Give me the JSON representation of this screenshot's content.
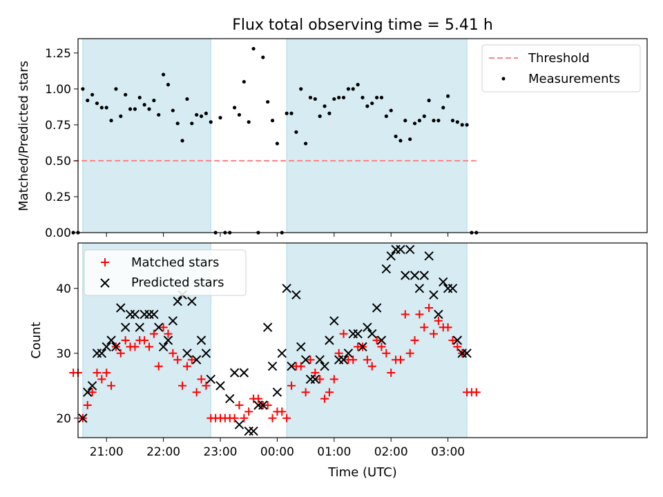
{
  "chart_data": [
    {
      "type": "scatter",
      "title": "Flux total observing time = 5.41 h",
      "xlabel": "",
      "ylabel": "Matched/Predicted stars",
      "ylim": [
        0,
        1.35
      ],
      "yticks": [
        0.0,
        0.25,
        0.5,
        0.75,
        1.0,
        1.25
      ],
      "ytick_labels": [
        "0.00",
        "0.25",
        "0.50",
        "0.75",
        "1.00",
        "1.25"
      ],
      "shaded_windows": [
        [
          "20:35",
          "22:50"
        ],
        [
          "00:10",
          "03:20"
        ]
      ],
      "threshold": {
        "name": "Threshold",
        "y": 0.5,
        "x": [
          "20:25",
          "03:30"
        ],
        "color": "#ff7f7f"
      },
      "series": [
        {
          "name": "Measurements",
          "color": "#000000",
          "x": [
            "20:25",
            "20:30",
            "20:35",
            "20:40",
            "20:45",
            "20:50",
            "20:55",
            "21:00",
            "21:05",
            "21:10",
            "21:15",
            "21:20",
            "21:25",
            "21:30",
            "21:35",
            "21:40",
            "21:45",
            "21:50",
            "21:55",
            "22:00",
            "22:05",
            "22:10",
            "22:15",
            "22:20",
            "22:25",
            "22:30",
            "22:35",
            "22:40",
            "22:45",
            "22:50",
            "22:55",
            "23:00",
            "23:05",
            "23:10",
            "23:15",
            "23:20",
            "23:25",
            "23:30",
            "23:35",
            "23:40",
            "23:45",
            "23:50",
            "23:55",
            "00:00",
            "00:05",
            "00:10",
            "00:15",
            "00:20",
            "00:25",
            "00:30",
            "00:35",
            "00:40",
            "00:45",
            "00:50",
            "00:55",
            "01:00",
            "01:05",
            "01:10",
            "01:15",
            "01:20",
            "01:25",
            "01:30",
            "01:35",
            "01:40",
            "01:45",
            "01:50",
            "01:55",
            "02:00",
            "02:05",
            "02:10",
            "02:15",
            "02:20",
            "02:25",
            "02:30",
            "02:35",
            "02:40",
            "02:45",
            "02:50",
            "02:55",
            "03:00",
            "03:05",
            "03:10",
            "03:15",
            "03:20",
            "03:25",
            "03:30"
          ],
          "y": [
            0,
            0,
            1.0,
            0.92,
            0.96,
            0.9,
            0.87,
            0.87,
            0.78,
            1.0,
            0.81,
            0.96,
            0.86,
            0.86,
            0.94,
            0.89,
            0.86,
            0.92,
            0.82,
            1.1,
            1.03,
            0.85,
            0.76,
            0.64,
            0.93,
            0.76,
            0.82,
            0.81,
            0.83,
            0.77,
            0,
            0.8,
            0,
            0,
            0.87,
            0.82,
            1.05,
            0.77,
            1.28,
            0,
            1.22,
            0.91,
            0.78,
            0.62,
            0,
            0.83,
            0.83,
            0.7,
            1.0,
            0.62,
            0.94,
            0.93,
            0.81,
            0.88,
            0.83,
            0.93,
            0.94,
            0.94,
            1.0,
            1.0,
            1.03,
            0.94,
            0.88,
            0.9,
            0.94,
            0.94,
            0.81,
            0.85,
            0.67,
            0.64,
            0.78,
            0.65,
            0.76,
            0.78,
            0.81,
            0.92,
            0.78,
            0.78,
            0.87,
            0.95,
            0.78,
            0.77,
            0.75,
            0.75,
            0,
            0
          ]
        }
      ]
    },
    {
      "type": "scatter",
      "title": "",
      "xlabel": "Time (UTC)",
      "ylabel": "Count",
      "ylim": [
        17,
        47
      ],
      "yticks": [
        20,
        30,
        40
      ],
      "xticks": [
        "21:00",
        "22:00",
        "23:00",
        "00:00",
        "01:00",
        "02:00",
        "03:00"
      ],
      "shaded_windows": [
        [
          "20:35",
          "22:50"
        ],
        [
          "00:10",
          "03:20"
        ]
      ],
      "series": [
        {
          "name": "Matched stars",
          "marker": "plus",
          "color": "#ff0000",
          "x": [
            "20:25",
            "20:30",
            "20:35",
            "20:40",
            "20:45",
            "20:50",
            "20:55",
            "21:00",
            "21:05",
            "21:10",
            "21:15",
            "21:20",
            "21:25",
            "21:30",
            "21:35",
            "21:40",
            "21:45",
            "21:50",
            "21:55",
            "22:00",
            "22:05",
            "22:10",
            "22:15",
            "22:20",
            "22:25",
            "22:30",
            "22:35",
            "22:40",
            "22:45",
            "22:50",
            "22:55",
            "23:00",
            "23:05",
            "23:10",
            "23:15",
            "23:20",
            "23:25",
            "23:30",
            "23:35",
            "23:40",
            "23:45",
            "23:50",
            "23:55",
            "00:00",
            "00:05",
            "00:10",
            "00:15",
            "00:20",
            "00:25",
            "00:30",
            "00:35",
            "00:40",
            "00:45",
            "00:50",
            "00:55",
            "01:00",
            "01:05",
            "01:10",
            "01:15",
            "01:20",
            "01:25",
            "01:30",
            "01:35",
            "01:40",
            "01:45",
            "01:50",
            "01:55",
            "02:00",
            "02:05",
            "02:10",
            "02:15",
            "02:20",
            "02:25",
            "02:30",
            "02:35",
            "02:40",
            "02:45",
            "02:50",
            "02:55",
            "03:00",
            "03:05",
            "03:10",
            "03:15",
            "03:20",
            "03:25",
            "03:30"
          ],
          "y": [
            27,
            27,
            20,
            22,
            24,
            27,
            26,
            27,
            25,
            31,
            30,
            32,
            31,
            31,
            32,
            32,
            31,
            33,
            28,
            34,
            33,
            30,
            29,
            25,
            28,
            29,
            24,
            26,
            25,
            20,
            20,
            20,
            20,
            20,
            20,
            22,
            20,
            21,
            23,
            23,
            22,
            22,
            20,
            21,
            21,
            20,
            25,
            28,
            28,
            24,
            29,
            27,
            26,
            23,
            24,
            26,
            30,
            33,
            29,
            29,
            31,
            31,
            29,
            28,
            32,
            31,
            30,
            27,
            29,
            29,
            36,
            30,
            32,
            36,
            34,
            37,
            33,
            35,
            34,
            34,
            32,
            31,
            30,
            24,
            24,
            24
          ]
        },
        {
          "name": "Predicted stars",
          "marker": "x",
          "color": "#000000",
          "x": [
            "20:35",
            "20:40",
            "20:45",
            "20:50",
            "20:55",
            "21:00",
            "21:05",
            "21:10",
            "21:15",
            "21:20",
            "21:25",
            "21:30",
            "21:35",
            "21:40",
            "21:45",
            "21:50",
            "21:55",
            "22:00",
            "22:05",
            "22:10",
            "22:15",
            "22:20",
            "22:25",
            "22:30",
            "22:35",
            "22:40",
            "22:45",
            "22:50",
            "23:00",
            "23:10",
            "23:15",
            "23:20",
            "23:25",
            "23:30",
            "23:35",
            "23:40",
            "23:45",
            "23:50",
            "23:55",
            "00:00",
            "00:05",
            "00:10",
            "00:15",
            "00:20",
            "00:25",
            "00:30",
            "00:35",
            "00:40",
            "00:45",
            "00:50",
            "00:55",
            "01:00",
            "01:05",
            "01:10",
            "01:15",
            "01:20",
            "01:25",
            "01:30",
            "01:35",
            "01:40",
            "01:45",
            "01:50",
            "01:55",
            "02:00",
            "02:05",
            "02:10",
            "02:15",
            "02:20",
            "02:25",
            "02:30",
            "02:35",
            "02:40",
            "02:45",
            "02:50",
            "02:55",
            "03:00",
            "03:05",
            "03:10",
            "03:15",
            "03:20"
          ],
          "y": [
            20,
            24,
            25,
            30,
            30,
            31,
            32,
            31,
            37,
            34,
            36,
            36,
            34,
            36,
            36,
            36,
            34,
            31,
            32,
            35,
            38,
            39,
            30,
            38,
            29,
            32,
            30,
            26,
            25,
            23,
            27,
            19,
            27,
            18,
            18,
            22,
            22,
            34,
            28,
            24,
            30,
            40,
            28,
            39,
            31,
            29,
            26,
            26,
            29,
            28,
            32,
            35,
            29,
            29,
            30,
            33,
            33,
            31,
            34,
            33,
            37,
            32,
            43,
            45,
            46,
            46,
            42,
            46,
            42,
            40,
            42,
            45,
            39,
            36,
            41,
            40,
            40,
            32,
            30,
            30
          ]
        }
      ]
    }
  ]
}
